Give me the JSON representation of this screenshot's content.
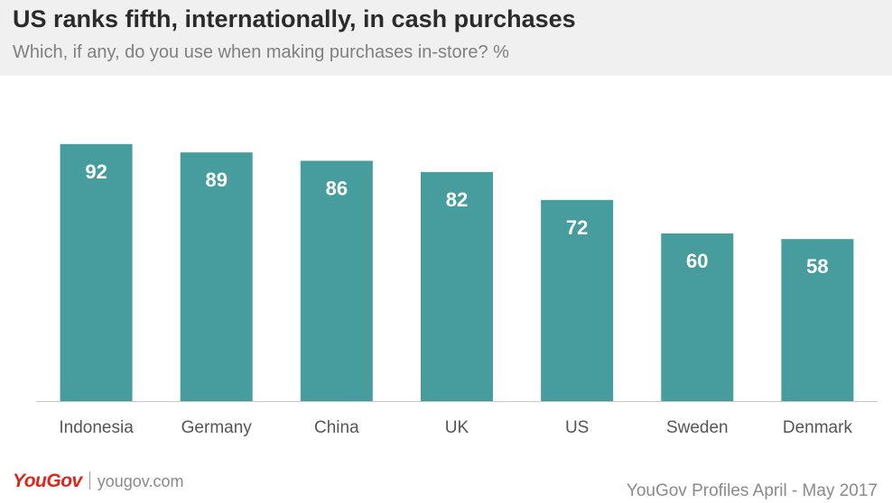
{
  "header": {
    "title": "US ranks fifth, internationally, in cash purchases",
    "subtitle": "Which, if any, do you use when making purchases in-store? %"
  },
  "footer": {
    "logo": "YouGov",
    "website": "yougov.com",
    "source": "YouGov Profiles April - May 2017"
  },
  "colors": {
    "bar": "#479d9d",
    "bar_label": "#ffffff",
    "axis": "#c8c8c8",
    "tick_label": "#555555",
    "logo": "#e2231a"
  },
  "chart_data": {
    "type": "bar",
    "title": "US ranks fifth, internationally, in cash purchases",
    "subtitle": "Which, if any, do you use when making purchases in-store? %",
    "categories": [
      "Indonesia",
      "Germany",
      "China",
      "UK",
      "US",
      "Sweden",
      "Denmark"
    ],
    "values": [
      92,
      89,
      86,
      82,
      72,
      60,
      58
    ],
    "ylim": [
      0,
      100
    ],
    "grid": false,
    "legend": "none",
    "data_labels": "inside-top"
  }
}
